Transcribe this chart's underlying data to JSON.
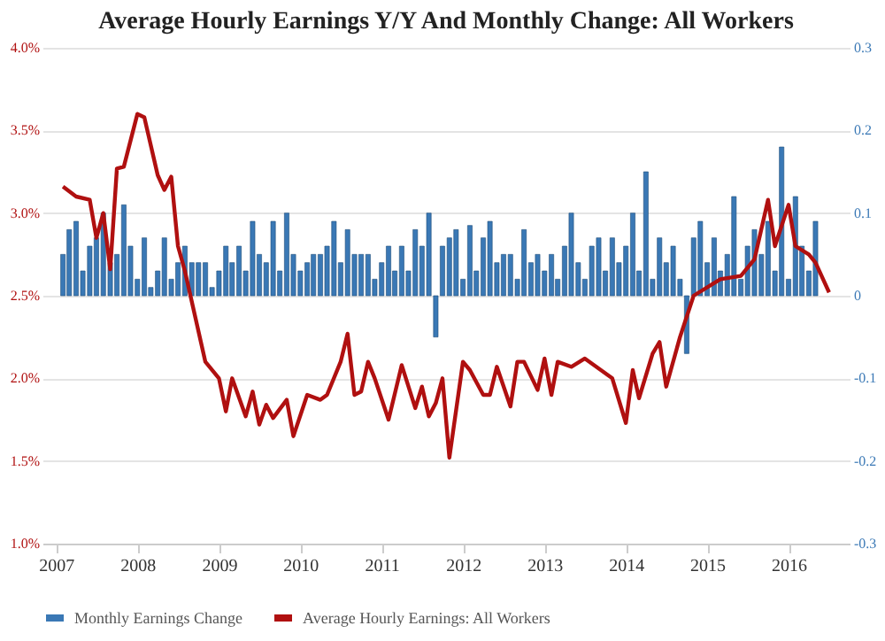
{
  "chart_data": {
    "type": "bar",
    "title": "Average Hourly Earnings Y/Y And Monthly Change: All Workers",
    "xlim": [
      "2006-11",
      "2016-10"
    ],
    "xticks": [
      "2007",
      "2008",
      "2009",
      "2010",
      "2011",
      "2012",
      "2013",
      "2014",
      "2015",
      "2016"
    ],
    "ylim": [
      1.0,
      4.0
    ],
    "yticks": [
      {
        "value": 1.0,
        "label": "1.0%"
      },
      {
        "value": 1.5,
        "label": "1.5%"
      },
      {
        "value": 2.0,
        "label": "2.0%"
      },
      {
        "value": 2.5,
        "label": "2.5%"
      },
      {
        "value": 3.0,
        "label": "3.0%"
      },
      {
        "value": 3.5,
        "label": "3.5%"
      },
      {
        "value": 4.0,
        "label": "4.0%"
      }
    ],
    "y2lim": [
      -0.3,
      0.3
    ],
    "y2ticks": [
      -0.3,
      -0.2,
      -0.1,
      0,
      0.1,
      0.2,
      0.3
    ],
    "grid": "y",
    "legend": "bottom",
    "series": [
      {
        "name": "Monthly Earnings Change",
        "axis": "y2",
        "color": "#3a78b5",
        "x": [
          "2007-02",
          "2007-03",
          "2007-04",
          "2007-05",
          "2007-06",
          "2007-07",
          "2007-08",
          "2007-09",
          "2007-10",
          "2007-11",
          "2007-12",
          "2008-01",
          "2008-02",
          "2008-03",
          "2008-04",
          "2008-05",
          "2008-06",
          "2008-07",
          "2008-08",
          "2008-09",
          "2008-10",
          "2008-11",
          "2008-12",
          "2009-01",
          "2009-02",
          "2009-03",
          "2009-04",
          "2009-05",
          "2009-06",
          "2009-07",
          "2009-08",
          "2009-09",
          "2009-10",
          "2009-11",
          "2009-12",
          "2010-01",
          "2010-02",
          "2010-03",
          "2010-04",
          "2010-05",
          "2010-06",
          "2010-07",
          "2010-08",
          "2010-09",
          "2010-10",
          "2010-11",
          "2010-12",
          "2011-01",
          "2011-02",
          "2011-03",
          "2011-04",
          "2011-05",
          "2011-06",
          "2011-07",
          "2011-08",
          "2011-09",
          "2011-10",
          "2011-11",
          "2011-12",
          "2012-01",
          "2012-02",
          "2012-03",
          "2012-04",
          "2012-05",
          "2012-06",
          "2012-07",
          "2012-08",
          "2012-09",
          "2012-10",
          "2012-11",
          "2012-12",
          "2013-01",
          "2013-02",
          "2013-03",
          "2013-04",
          "2013-05",
          "2013-06",
          "2013-07",
          "2013-08",
          "2013-09",
          "2013-10",
          "2013-11",
          "2013-12",
          "2014-01",
          "2014-02",
          "2014-03",
          "2014-04",
          "2014-05",
          "2014-06",
          "2014-07",
          "2014-08",
          "2014-09",
          "2014-10",
          "2014-11",
          "2014-12",
          "2015-01",
          "2015-02",
          "2015-03",
          "2015-04",
          "2015-05",
          "2015-06",
          "2015-07",
          "2015-08",
          "2015-09",
          "2015-10",
          "2015-11",
          "2015-12",
          "2016-01",
          "2016-02",
          "2016-03",
          "2016-04",
          "2016-05"
        ],
        "values": [
          0.05,
          0.08,
          0.09,
          0.03,
          0.06,
          0.07,
          0.1,
          0.04,
          0.05,
          0.11,
          0.06,
          0.02,
          0.07,
          0.01,
          0.03,
          0.07,
          0.02,
          0.04,
          0.06,
          0.04,
          0.04,
          0.04,
          0.01,
          0.03,
          0.06,
          0.04,
          0.06,
          0.03,
          0.09,
          0.05,
          0.04,
          0.09,
          0.03,
          0.1,
          0.05,
          0.03,
          0.04,
          0.05,
          0.05,
          0.06,
          0.09,
          0.04,
          0.08,
          0.05,
          0.05,
          0.05,
          0.02,
          0.04,
          0.06,
          0.03,
          0.06,
          0.03,
          0.08,
          0.06,
          0.1,
          -0.05,
          0.06,
          0.07,
          0.08,
          0.02,
          0.085,
          0.03,
          0.07,
          0.09,
          0.04,
          0.05,
          0.05,
          0.02,
          0.08,
          0.04,
          0.05,
          0.03,
          0.05,
          0.02,
          0.06,
          0.1,
          0.04,
          0.02,
          0.06,
          0.07,
          0.03,
          0.07,
          0.04,
          0.06,
          0.1,
          0.03,
          0.15,
          0.02,
          0.07,
          0.04,
          0.06,
          0.02,
          -0.07,
          0.07,
          0.09,
          0.04,
          0.07,
          0.03,
          0.05,
          0.12,
          0.02,
          0.06,
          0.08,
          0.05,
          0.09,
          0.03,
          0.18,
          0.02,
          0.12,
          0.06,
          0.03,
          0.09
        ]
      },
      {
        "name": "Average Hourly Earnings: All Workers",
        "type": "line",
        "color": "#b01010",
        "x": [
          "2007-02",
          "2007-04",
          "2007-06",
          "2007-07",
          "2007-08",
          "2007-09",
          "2007-10",
          "2007-11",
          "2008-01",
          "2008-02",
          "2008-04",
          "2008-05",
          "2008-06",
          "2008-07",
          "2008-08",
          "2008-11",
          "2009-01",
          "2009-02",
          "2009-03",
          "2009-05",
          "2009-06",
          "2009-07",
          "2009-08",
          "2009-09",
          "2009-11",
          "2009-12",
          "2010-02",
          "2010-04",
          "2010-05",
          "2010-07",
          "2010-08",
          "2010-09",
          "2010-10",
          "2010-11",
          "2010-12",
          "2011-02",
          "2011-04",
          "2011-06",
          "2011-07",
          "2011-08",
          "2011-09",
          "2011-10",
          "2011-11",
          "2012-01",
          "2012-02",
          "2012-04",
          "2012-05",
          "2012-06",
          "2012-08",
          "2012-09",
          "2012-10",
          "2012-12",
          "2013-01",
          "2013-02",
          "2013-03",
          "2013-05",
          "2013-07",
          "2013-11",
          "2014-01",
          "2014-02",
          "2014-03",
          "2014-05",
          "2014-06",
          "2014-07",
          "2014-09",
          "2014-11",
          "2015-03",
          "2015-06",
          "2015-08",
          "2015-10",
          "2015-11",
          "2016-01",
          "2016-02",
          "2016-04",
          "2016-05",
          "2016-07"
        ],
        "values": [
          3.16,
          3.1,
          3.08,
          2.85,
          3.0,
          2.66,
          3.27,
          3.28,
          3.6,
          3.58,
          3.23,
          3.14,
          3.22,
          2.8,
          2.65,
          2.1,
          2.0,
          1.8,
          2.0,
          1.77,
          1.92,
          1.72,
          1.84,
          1.76,
          1.87,
          1.65,
          1.9,
          1.87,
          1.9,
          2.1,
          2.27,
          1.9,
          1.92,
          2.1,
          2.0,
          1.75,
          2.08,
          1.82,
          1.95,
          1.77,
          1.85,
          2.0,
          1.52,
          2.1,
          2.05,
          1.9,
          1.9,
          2.07,
          1.83,
          2.1,
          2.1,
          1.93,
          2.12,
          1.9,
          2.1,
          2.07,
          2.12,
          2.0,
          1.73,
          2.05,
          1.88,
          2.15,
          2.22,
          1.95,
          2.25,
          2.5,
          2.6,
          2.62,
          2.72,
          3.08,
          2.8,
          3.05,
          2.8,
          2.75,
          2.7,
          2.52
        ]
      }
    ]
  }
}
